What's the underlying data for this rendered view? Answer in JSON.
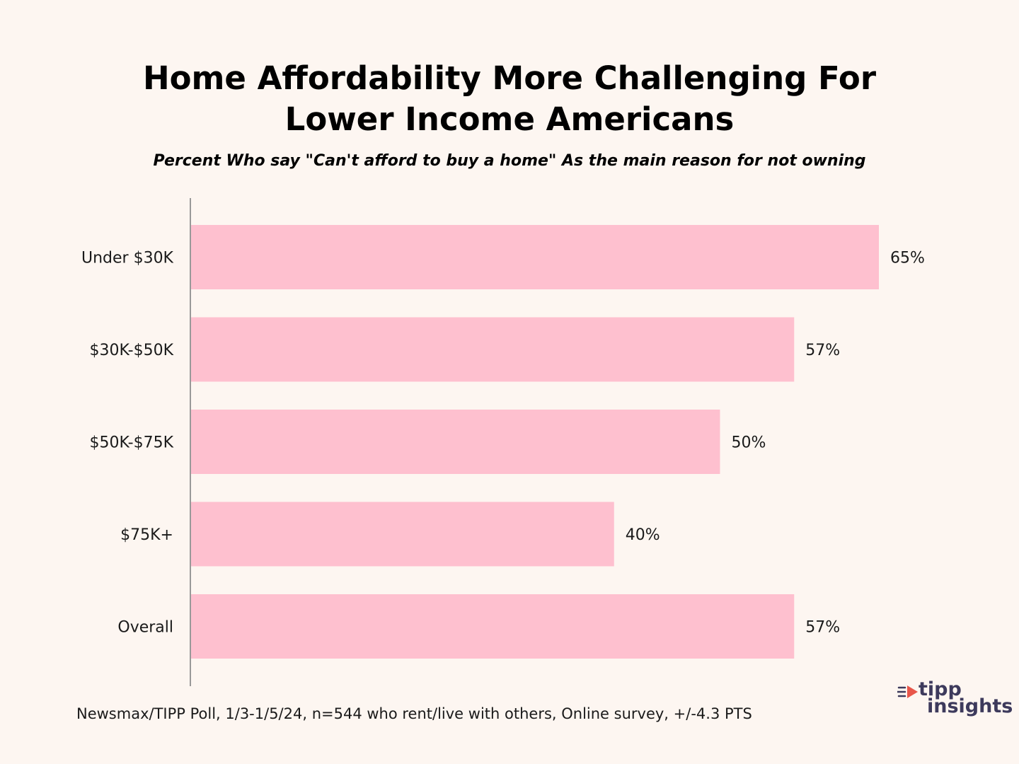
{
  "chart_data": {
    "type": "bar",
    "orientation": "horizontal",
    "title": "Home Affordability More Challenging For Lower Income Americans",
    "subtitle": "Percent Who say \"Can't afford to buy a home\" As the main reason for not owning",
    "categories": [
      "Under $30K",
      "$30K-$50K",
      "$50K-$75K",
      "$75K+",
      "Overall"
    ],
    "values": [
      65,
      57,
      50,
      40,
      57
    ],
    "value_labels": [
      "65%",
      "57%",
      "50%",
      "40%",
      "57%"
    ],
    "unit": "%",
    "xlim": [
      0,
      70
    ],
    "xlabel": "",
    "ylabel": "",
    "grid": false,
    "bar_color": "#fec0cf",
    "axis_color": "#999999"
  },
  "footnote": "Newsmax/TIPP Poll, 1/3-1/5/24, n=544 who rent/live with others, Online survey, +/-4.3 PTS",
  "logo": {
    "word1": "tipp",
    "word2": "insights",
    "icon": "speed-lines-icon",
    "accent_color": "#e8564a",
    "text_color": "#3d3a5c"
  },
  "background_color": "#fdf6f1"
}
